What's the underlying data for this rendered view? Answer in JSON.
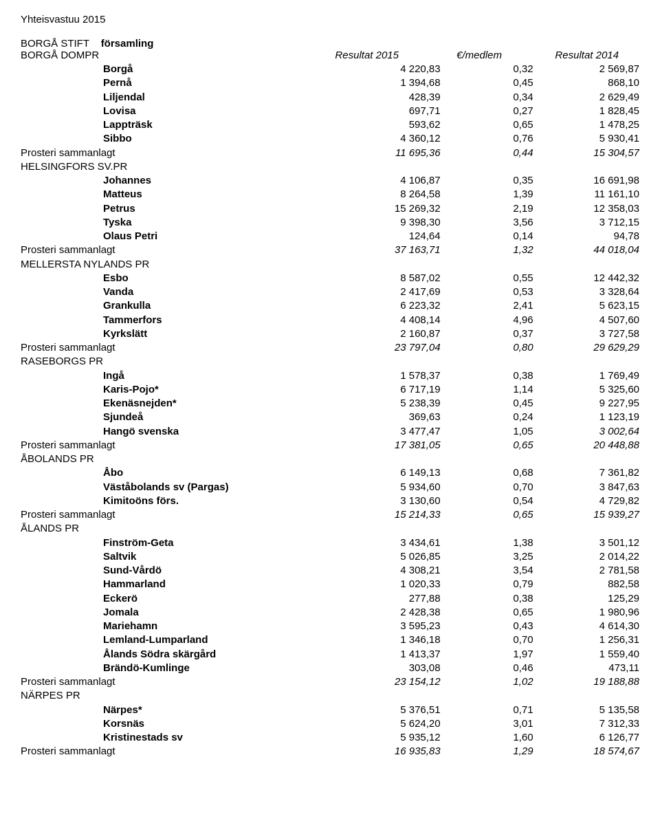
{
  "page_title": "Yhteisvastuu 2015",
  "diocese": "BORGÅ STIFT",
  "diocese_label": "församling",
  "columns": {
    "dompr": "BORGÅ DOMPR",
    "r2015": "Resultat 2015",
    "per_member": "€/medlem",
    "r2014": "Resultat 2014"
  },
  "sections": [
    {
      "header": null,
      "rows": [
        {
          "name": "Borgå",
          "v1": "4 220,83",
          "v2": "0,32",
          "v3": "2 569,87",
          "bold": true
        },
        {
          "name": "Pernå",
          "v1": "1 394,68",
          "v2": "0,45",
          "v3": "868,10",
          "bold": true
        },
        {
          "name": "Liljendal",
          "v1": "428,39",
          "v2": "0,34",
          "v3": "2 629,49",
          "bold": true
        },
        {
          "name": "Lovisa",
          "v1": "697,71",
          "v2": "0,27",
          "v3": "1 828,45",
          "bold": true
        },
        {
          "name": "Lappträsk",
          "v1": "593,62",
          "v2": "0,65",
          "v3": "1 478,25",
          "bold": true
        },
        {
          "name": "Sibbo",
          "v1": "4 360,12",
          "v2": "0,76",
          "v3": "5 930,41",
          "bold": true
        }
      ],
      "summary": {
        "name": "Prosteri sammanlagt",
        "v1": "11 695,36",
        "v2": "0,44",
        "v3": "15 304,57"
      }
    },
    {
      "header": "HELSINGFORS SV.PR",
      "rows": [
        {
          "name": "Johannes",
          "v1": "4 106,87",
          "v2": "0,35",
          "v3": "16 691,98",
          "bold": true
        },
        {
          "name": "Matteus",
          "v1": "8 264,58",
          "v2": "1,39",
          "v3": "11 161,10",
          "bold": true
        },
        {
          "name": "Petrus",
          "v1": "15 269,32",
          "v2": "2,19",
          "v3": "12 358,03",
          "bold": true
        },
        {
          "name": "Tyska",
          "v1": "9 398,30",
          "v2": "3,56",
          "v3": "3 712,15",
          "bold": true
        },
        {
          "name": "Olaus Petri",
          "v1": "124,64",
          "v2": "0,14",
          "v3": "94,78",
          "bold": true
        }
      ],
      "summary": {
        "name": "Prosteri sammanlagt",
        "v1": "37 163,71",
        "v2": "1,32",
        "v3": "44 018,04"
      }
    },
    {
      "header": "MELLERSTA NYLANDS PR",
      "rows": [
        {
          "name": "Esbo",
          "v1": "8 587,02",
          "v2": "0,55",
          "v3": "12 442,32",
          "bold": true
        },
        {
          "name": "Vanda",
          "v1": "2 417,69",
          "v2": "0,53",
          "v3": "3 328,64",
          "bold": true
        },
        {
          "name": "Grankulla",
          "v1": "6 223,32",
          "v2": "2,41",
          "v3": "5 623,15",
          "bold": true
        },
        {
          "name": "Tammerfors",
          "v1": "4 408,14",
          "v2": "4,96",
          "v3": "4 507,60",
          "bold": true
        },
        {
          "name": "Kyrkslätt",
          "v1": "2 160,87",
          "v2": "0,37",
          "v3": "3 727,58",
          "bold": true
        }
      ],
      "summary": {
        "name": "Prosteri sammanlagt",
        "v1": "23 797,04",
        "v2": "0,80",
        "v3": "29 629,29"
      }
    },
    {
      "header": "RASEBORGS PR",
      "rows": [
        {
          "name": "Ingå",
          "v1": "1 578,37",
          "v2": "0,38",
          "v3": "1 769,49",
          "bold": true
        },
        {
          "name": "Karis-Pojo*",
          "v1": "6 717,19",
          "v2": "1,14",
          "v3": "5 325,60",
          "bold": true
        },
        {
          "name": "Ekenäsnejden*",
          "v1": "5 238,39",
          "v2": "0,45",
          "v3": "9 227,95",
          "bold": true
        },
        {
          "name": "Sjundeå",
          "v1": "369,63",
          "v2": "0,24",
          "v3": "1 123,19",
          "bold": true
        },
        {
          "name": "Hangö svenska",
          "v1": "3 477,47",
          "v2": "1,05",
          "v3": "3 002,64",
          "bold": true,
          "v3_italic": true
        }
      ],
      "summary": {
        "name": "Prosteri sammanlagt",
        "v1": "17 381,05",
        "v2": "0,65",
        "v3": "20 448,88"
      }
    },
    {
      "header": "ÅBOLANDS PR",
      "rows": [
        {
          "name": "Åbo",
          "v1": "6 149,13",
          "v2": "0,68",
          "v3": "7 361,82",
          "bold": true
        },
        {
          "name": "Väståbolands sv (Pargas)",
          "v1": "5 934,60",
          "v2": "0,70",
          "v3": "3 847,63",
          "bold": true
        },
        {
          "name": "Kimitoöns förs.",
          "v1": "3 130,60",
          "v2": "0,54",
          "v3": "4 729,82",
          "bold": true
        }
      ],
      "summary": {
        "name": "Prosteri sammanlagt",
        "v1": "15 214,33",
        "v2": "0,65",
        "v3": "15 939,27"
      }
    },
    {
      "header": "ÅLANDS PR",
      "rows": [
        {
          "name": "Finström-Geta",
          "v1": "3 434,61",
          "v2": "1,38",
          "v3": "3 501,12",
          "bold": true
        },
        {
          "name": "Saltvik",
          "v1": "5 026,85",
          "v2": "3,25",
          "v3": "2 014,22",
          "bold": true
        },
        {
          "name": "Sund-Vårdö",
          "v1": "4 308,21",
          "v2": "3,54",
          "v3": "2 781,58",
          "bold": true
        },
        {
          "name": "Hammarland",
          "v1": "1 020,33",
          "v2": "0,79",
          "v3": "882,58",
          "bold": true
        },
        {
          "name": "Eckerö",
          "v1": "277,88",
          "v2": "0,38",
          "v3": "125,29",
          "bold": true
        },
        {
          "name": "Jomala",
          "v1": "2 428,38",
          "v2": "0,65",
          "v3": "1 980,96",
          "bold": true
        },
        {
          "name": "Mariehamn",
          "v1": "3 595,23",
          "v2": "0,43",
          "v3": "4 614,30",
          "bold": true
        },
        {
          "name": "Lemland-Lumparland",
          "v1": "1 346,18",
          "v2": "0,70",
          "v3": "1 256,31",
          "bold": true
        },
        {
          "name": "Ålands Södra skärgård",
          "v1": "1 413,37",
          "v2": "1,97",
          "v3": "1 559,40",
          "bold": true
        },
        {
          "name": "Brändö-Kumlinge",
          "v1": "303,08",
          "v2": "0,46",
          "v3": "473,11",
          "bold": true
        }
      ],
      "summary": {
        "name": "Prosteri sammanlagt",
        "v1": "23 154,12",
        "v2": "1,02",
        "v3": "19 188,88"
      }
    },
    {
      "header": "NÄRPES PR",
      "rows": [
        {
          "name": "Närpes*",
          "v1": "5 376,51",
          "v2": "0,71",
          "v3": "5 135,58",
          "bold": true
        },
        {
          "name": "Korsnäs",
          "v1": "5 624,20",
          "v2": "3,01",
          "v3": "7 312,33",
          "bold": true
        },
        {
          "name": "Kristinestads sv",
          "v1": "5 935,12",
          "v2": "1,60",
          "v3": "6 126,77",
          "bold": true
        }
      ],
      "summary": {
        "name": "Prosteri sammanlagt",
        "v1": "16 935,83",
        "v2": "1,29",
        "v3": "18 574,67"
      }
    }
  ]
}
